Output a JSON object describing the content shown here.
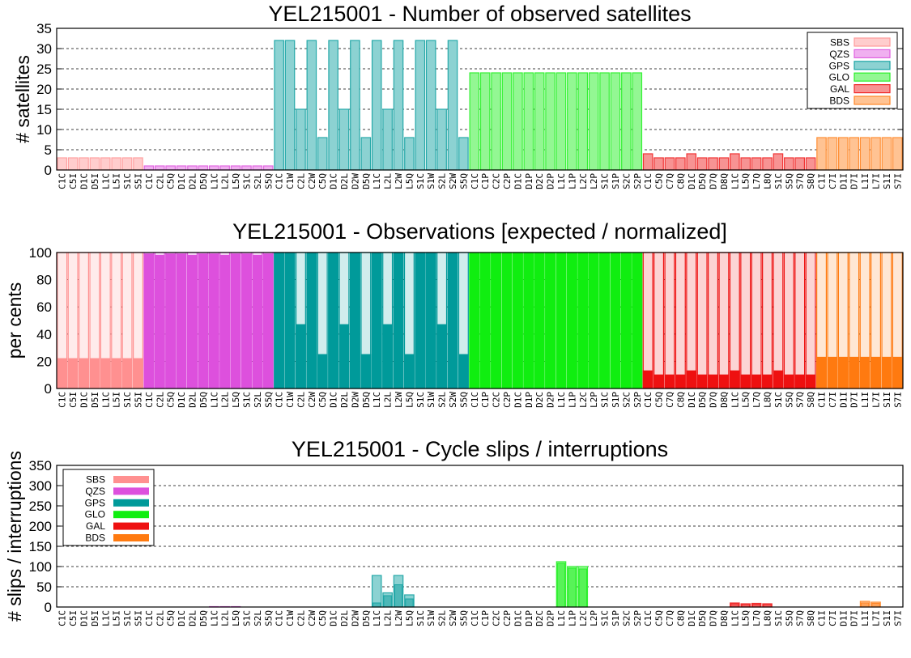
{
  "colors": {
    "SBS": "#ff9090",
    "QZS": "#dd50dd",
    "GPS": "#009a9a",
    "GLO": "#10ee10",
    "GAL": "#ee1010",
    "BDS": "#ff7a10"
  },
  "chart_data": [
    {
      "type": "bar",
      "title": "YEL215001 - Number of observed satellites",
      "ylabel": "# satellites",
      "ylim": [
        0,
        35
      ],
      "yticks": [
        0,
        5,
        10,
        15,
        20,
        25,
        30,
        35
      ],
      "grid": true,
      "legend_position": "top-right",
      "legend": [
        "SBS",
        "QZS",
        "GPS",
        "GLO",
        "GAL",
        "BDS"
      ],
      "groups": [
        {
          "system": "SBS",
          "codes": [
            "C1C",
            "C5I",
            "D1C",
            "D5I",
            "L1C",
            "L5I",
            "S1C",
            "S5I"
          ],
          "values": [
            3,
            3,
            3,
            3,
            3,
            3,
            3,
            3
          ]
        },
        {
          "system": "QZS",
          "codes": [
            "C1C",
            "C2L",
            "C5Q",
            "D1C",
            "D2L",
            "D5Q",
            "L1C",
            "L2L",
            "L5Q",
            "S1C",
            "S2L",
            "S5Q"
          ],
          "values": [
            1,
            1,
            1,
            1,
            1,
            1,
            1,
            1,
            1,
            1,
            1,
            1
          ]
        },
        {
          "system": "GPS",
          "codes": [
            "C1C",
            "C1W",
            "C2L",
            "C2W",
            "C5Q",
            "D1C",
            "D2L",
            "D2W",
            "D5Q",
            "L1C",
            "L2L",
            "L2W",
            "L5Q",
            "S1C",
            "S1W",
            "S2L",
            "S2W",
            "S5Q"
          ],
          "values": [
            32,
            32,
            15,
            32,
            8,
            32,
            15,
            32,
            8,
            32,
            15,
            32,
            8,
            32,
            32,
            15,
            32,
            8
          ]
        },
        {
          "system": "GLO",
          "codes": [
            "C1C",
            "C1P",
            "C2C",
            "C2P",
            "D1C",
            "D1P",
            "D2C",
            "D2P",
            "L1C",
            "L1P",
            "L2C",
            "L2P",
            "S1C",
            "S1P",
            "S2C",
            "S2P"
          ],
          "values": [
            24,
            24,
            24,
            24,
            24,
            24,
            24,
            24,
            24,
            24,
            24,
            24,
            24,
            24,
            24,
            24
          ]
        },
        {
          "system": "GAL",
          "codes": [
            "C1C",
            "C5Q",
            "C7Q",
            "C8Q",
            "D1C",
            "D5Q",
            "D7Q",
            "D8Q",
            "L1C",
            "L5Q",
            "L7Q",
            "L8Q",
            "S1C",
            "S5Q",
            "S7Q",
            "S8Q"
          ],
          "values": [
            4,
            3,
            3,
            3,
            4,
            3,
            3,
            3,
            4,
            3,
            3,
            3,
            4,
            3,
            3,
            3
          ]
        },
        {
          "system": "BDS",
          "codes": [
            "C1I",
            "C7I",
            "D1I",
            "D7I",
            "L1I",
            "L7I",
            "S1I",
            "S7I"
          ],
          "values": [
            8,
            8,
            8,
            8,
            8,
            8,
            8,
            8
          ]
        }
      ]
    },
    {
      "type": "bar",
      "title": "YEL215001 - Observations [expected / normalized]",
      "ylabel": "per cents",
      "ylim": [
        0,
        100
      ],
      "yticks": [
        0,
        20,
        40,
        60,
        80,
        100
      ],
      "grid": true,
      "groups": [
        {
          "system": "SBS",
          "codes": [
            "C1C",
            "C5I",
            "D1C",
            "D5I",
            "L1C",
            "L5I",
            "S1C",
            "S5I"
          ],
          "expected": [
            100,
            100,
            100,
            100,
            100,
            100,
            100,
            100
          ],
          "normalized": [
            22,
            22,
            22,
            22,
            22,
            22,
            22,
            22
          ]
        },
        {
          "system": "QZS",
          "codes": [
            "C1C",
            "C2L",
            "C5Q",
            "D1C",
            "D2L",
            "D5Q",
            "L1C",
            "L2L",
            "L5Q",
            "S1C",
            "S2L",
            "S5Q"
          ],
          "expected": [
            100,
            100,
            100,
            100,
            100,
            100,
            100,
            100,
            100,
            100,
            100,
            100
          ],
          "normalized": [
            99,
            98,
            99,
            99,
            98,
            99,
            99,
            98,
            99,
            99,
            98,
            99
          ]
        },
        {
          "system": "GPS",
          "codes": [
            "C1C",
            "C1W",
            "C2L",
            "C2W",
            "C5Q",
            "D1C",
            "D2L",
            "D2W",
            "D5Q",
            "L1C",
            "L2L",
            "L2W",
            "L5Q",
            "S1C",
            "S1W",
            "S2L",
            "S2W",
            "S5Q"
          ],
          "expected": [
            100,
            100,
            100,
            100,
            100,
            100,
            100,
            100,
            100,
            100,
            100,
            100,
            100,
            100,
            100,
            100,
            100,
            100
          ],
          "normalized": [
            100,
            100,
            47,
            100,
            25,
            100,
            47,
            100,
            25,
            100,
            47,
            100,
            25,
            100,
            100,
            47,
            100,
            25
          ]
        },
        {
          "system": "GLO",
          "codes": [
            "C1C",
            "C1P",
            "C2C",
            "C2P",
            "D1C",
            "D1P",
            "D2C",
            "D2P",
            "L1C",
            "L1P",
            "L2C",
            "L2P",
            "S1C",
            "S1P",
            "S2C",
            "S2P"
          ],
          "expected": [
            100,
            100,
            100,
            100,
            100,
            100,
            100,
            100,
            100,
            100,
            100,
            100,
            100,
            100,
            100,
            100
          ],
          "normalized": [
            100,
            100,
            100,
            100,
            100,
            100,
            100,
            100,
            100,
            100,
            100,
            100,
            100,
            100,
            100,
            100
          ]
        },
        {
          "system": "GAL",
          "codes": [
            "C1C",
            "C5Q",
            "C7Q",
            "C8Q",
            "D1C",
            "D5Q",
            "D7Q",
            "D8Q",
            "L1C",
            "L5Q",
            "L7Q",
            "L8Q",
            "S1C",
            "S5Q",
            "S7Q",
            "S8Q"
          ],
          "expected": [
            100,
            100,
            100,
            100,
            100,
            100,
            100,
            100,
            100,
            100,
            100,
            100,
            100,
            100,
            100,
            100
          ],
          "normalized": [
            13,
            10,
            10,
            10,
            13,
            10,
            10,
            10,
            13,
            10,
            10,
            10,
            13,
            10,
            10,
            10
          ]
        },
        {
          "system": "BDS",
          "codes": [
            "C1I",
            "C7I",
            "D1I",
            "D7I",
            "L1I",
            "L7I",
            "S1I",
            "S7I"
          ],
          "expected": [
            100,
            100,
            100,
            100,
            100,
            100,
            100,
            100
          ],
          "normalized": [
            23,
            23,
            23,
            23,
            23,
            23,
            23,
            23
          ]
        }
      ]
    },
    {
      "type": "bar",
      "title": "YEL215001 - Cycle slips / interruptions",
      "ylabel": "# slips / interruptions",
      "ylim": [
        0,
        350
      ],
      "yticks": [
        0,
        50,
        100,
        150,
        200,
        250,
        300,
        350
      ],
      "grid": true,
      "legend_position": "top-left",
      "legend": [
        "SBS",
        "QZS",
        "GPS",
        "GLO",
        "GAL",
        "BDS"
      ],
      "groups": [
        {
          "system": "SBS",
          "codes": [
            "C1C",
            "C5I",
            "D1C",
            "D5I",
            "L1C",
            "L5I",
            "S1C",
            "S5I"
          ],
          "slips": [
            0,
            0,
            0,
            0,
            0,
            0,
            0,
            0
          ],
          "interruptions": [
            0,
            0,
            0,
            0,
            0,
            0,
            0,
            0
          ]
        },
        {
          "system": "QZS",
          "codes": [
            "C1C",
            "C2L",
            "C5Q",
            "D1C",
            "D2L",
            "D5Q",
            "L1C",
            "L2L",
            "L5Q",
            "S1C",
            "S2L",
            "S5Q"
          ],
          "slips": [
            0,
            0,
            0,
            0,
            0,
            0,
            1,
            1,
            1,
            0,
            0,
            0
          ],
          "interruptions": [
            0,
            0,
            0,
            0,
            0,
            0,
            1,
            1,
            1,
            0,
            0,
            0
          ]
        },
        {
          "system": "GPS",
          "codes": [
            "C1C",
            "C1W",
            "C2L",
            "C2W",
            "C5Q",
            "D1C",
            "D2L",
            "D2W",
            "D5Q",
            "L1C",
            "L2L",
            "L2W",
            "L5Q",
            "S1C",
            "S1W",
            "S2L",
            "S2W",
            "S5Q"
          ],
          "slips": [
            0,
            0,
            0,
            0,
            0,
            0,
            0,
            0,
            0,
            78,
            35,
            78,
            30,
            0,
            0,
            0,
            0,
            0
          ],
          "interruptions": [
            0,
            0,
            0,
            0,
            0,
            0,
            0,
            0,
            0,
            10,
            28,
            55,
            20,
            0,
            0,
            0,
            0,
            0
          ]
        },
        {
          "system": "GLO",
          "codes": [
            "C1C",
            "C1P",
            "C2C",
            "C2P",
            "D1C",
            "D1P",
            "D2C",
            "D2P",
            "L1C",
            "L1P",
            "L2C",
            "L2P",
            "S1C",
            "S1P",
            "S2C",
            "S2P"
          ],
          "slips": [
            0,
            0,
            0,
            0,
            0,
            0,
            0,
            0,
            112,
            100,
            100,
            0,
            0,
            0,
            0,
            0
          ],
          "interruptions": [
            0,
            0,
            0,
            0,
            0,
            0,
            0,
            0,
            108,
            96,
            94,
            0,
            0,
            0,
            0,
            0
          ]
        },
        {
          "system": "GAL",
          "codes": [
            "C1C",
            "C5Q",
            "C7Q",
            "C8Q",
            "D1C",
            "D5Q",
            "D7Q",
            "D8Q",
            "L1C",
            "L5Q",
            "L7Q",
            "L8Q",
            "S1C",
            "S5Q",
            "S7Q",
            "S8Q"
          ],
          "slips": [
            0,
            0,
            0,
            0,
            0,
            0,
            0,
            0,
            10,
            8,
            9,
            8,
            0,
            0,
            0,
            0
          ],
          "interruptions": [
            0,
            0,
            0,
            0,
            0,
            0,
            0,
            0,
            8,
            7,
            7,
            7,
            0,
            0,
            0,
            0
          ]
        },
        {
          "system": "BDS",
          "codes": [
            "C1I",
            "C7I",
            "D1I",
            "D7I",
            "L1I",
            "L7I",
            "S1I",
            "S7I"
          ],
          "slips": [
            0,
            0,
            0,
            0,
            14,
            12,
            0,
            0
          ],
          "interruptions": [
            0,
            0,
            0,
            0,
            10,
            9,
            0,
            0
          ]
        }
      ]
    }
  ]
}
